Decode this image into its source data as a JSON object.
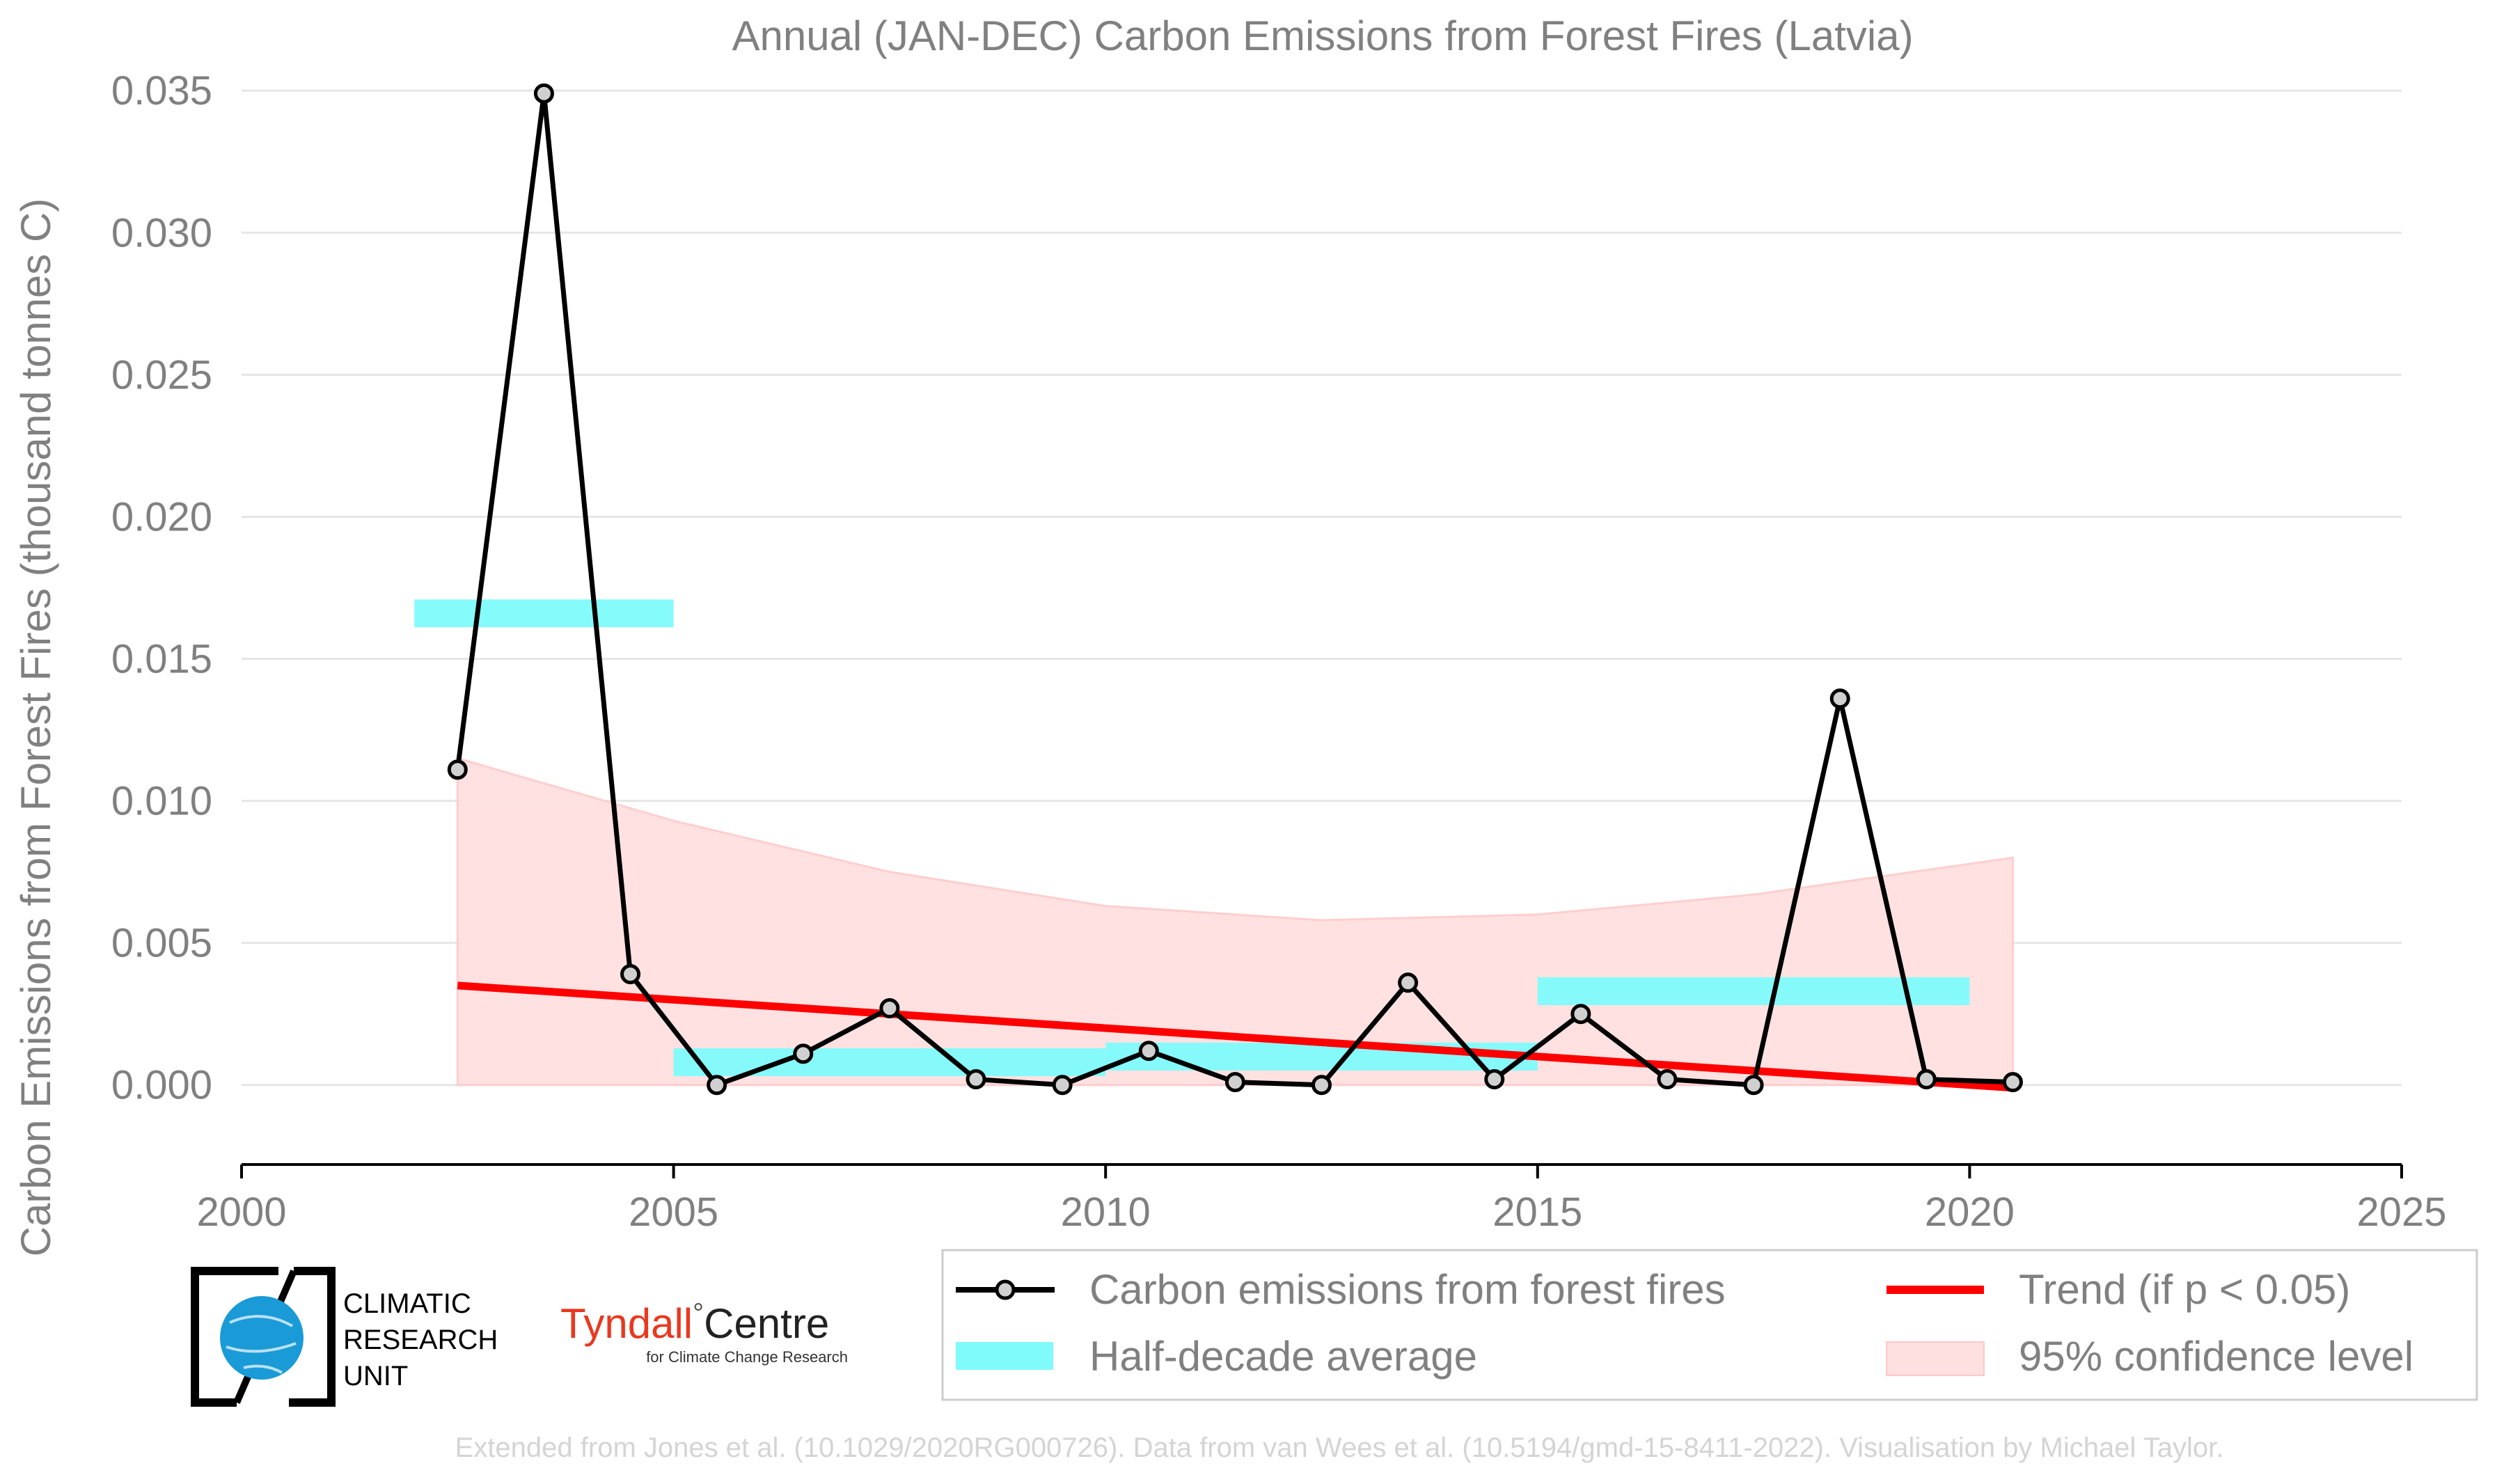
{
  "chart_data": {
    "type": "line",
    "title": "Annual (JAN-DEC) Carbon Emissions from Forest Fires (Latvia)",
    "xlabel": "",
    "ylabel": "Carbon Emissions from Forest Fires (thousand tonnes C)",
    "xlim": [
      2000,
      2025
    ],
    "ylim": [
      -0.0028,
      0.0353
    ],
    "x_ticks": [
      2000,
      2005,
      2010,
      2015,
      2020,
      2025
    ],
    "y_ticks": [
      0.0,
      0.005,
      0.01,
      0.015,
      0.02,
      0.025,
      0.03,
      0.035
    ],
    "y_tick_labels": [
      "0.000",
      "0.005",
      "0.010",
      "0.015",
      "0.020",
      "0.025",
      "0.030",
      "0.035"
    ],
    "grid": "horizontal",
    "series": [
      {
        "name": "Carbon emissions from forest fires",
        "color": "#000000",
        "x": [
          2002.5,
          2003.5,
          2004.5,
          2005.5,
          2006.5,
          2007.5,
          2008.5,
          2009.5,
          2010.5,
          2011.5,
          2012.5,
          2013.5,
          2014.5,
          2015.5,
          2016.5,
          2017.5,
          2018.5,
          2019.5,
          2020.5
        ],
        "values": [
          0.0111,
          0.0349,
          0.0039,
          0.0,
          0.0011,
          0.0027,
          0.0002,
          0.0,
          0.0012,
          0.0001,
          0.0,
          0.0036,
          0.0002,
          0.0025,
          0.0002,
          0.0,
          0.0136,
          0.0002,
          0.0001
        ]
      }
    ],
    "half_decade_average": {
      "name": "Half-decade average",
      "color": "#7ffbfb",
      "periods": [
        {
          "start": 2002,
          "end": 2005,
          "value": 0.0166
        },
        {
          "start": 2005,
          "end": 2010,
          "value": 0.0008
        },
        {
          "start": 2010,
          "end": 2015,
          "value": 0.001
        },
        {
          "start": 2015,
          "end": 2020,
          "value": 0.0033
        }
      ]
    },
    "trend": {
      "name": "Trend (if p < 0.05)",
      "color": "#ff0000",
      "x": [
        2002.5,
        2020.5
      ],
      "values": [
        0.0035,
        -0.0001
      ]
    },
    "confidence_band": {
      "name": "95% confidence level",
      "color": "#ffe0e0",
      "x": [
        2002.5,
        2005,
        2007.5,
        2010,
        2012.5,
        2015,
        2017.5,
        2020.5
      ],
      "lower": [
        0,
        0,
        0,
        0,
        0,
        0,
        0,
        0
      ],
      "upper": [
        0.0115,
        0.0093,
        0.0075,
        0.0063,
        0.0058,
        0.006,
        0.0067,
        0.008
      ]
    },
    "legend_position": "bottom-right"
  },
  "logos": {
    "cru_line1": "CLIMATIC",
    "cru_line2": "RESEARCH",
    "cru_line3": "UNIT",
    "tyndall_name": "Tyndall",
    "tyndall_degree": "°",
    "tyndall_centre": "Centre",
    "tyndall_sub": "for Climate Change Research"
  },
  "credit": "Extended from Jones et al. (10.1029/2020RG000726). Data from van Wees et al. (10.5194/gmd-15-8411-2022). Visualisation by Michael Taylor."
}
